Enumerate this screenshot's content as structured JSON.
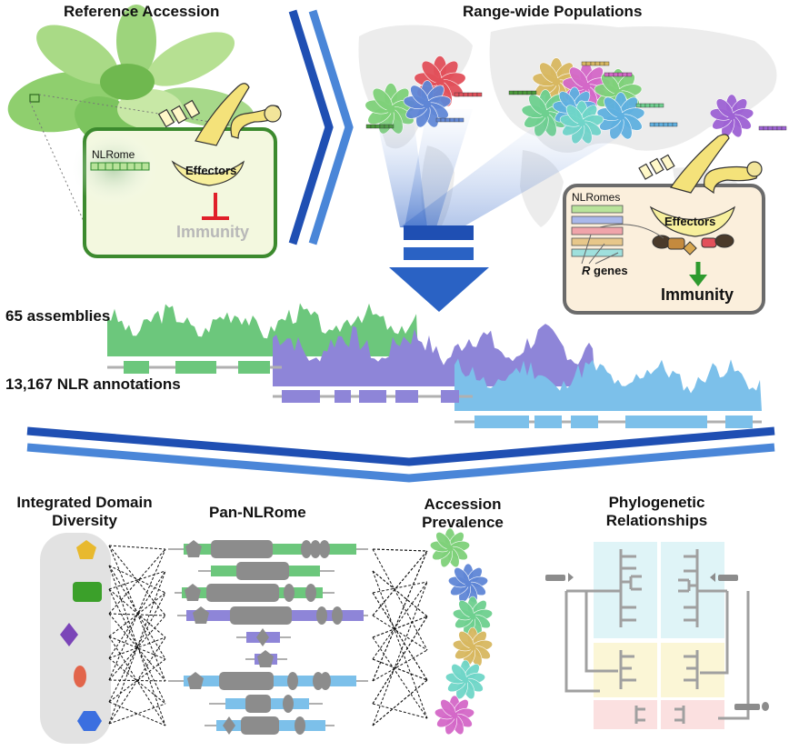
{
  "titles": {
    "reference_accession": "Reference Accession",
    "range_wide": "Range-wide Populations",
    "integrated_domain_line1": "Integrated Domain",
    "integrated_domain_line2": "Diversity",
    "pan_nlrome": "Pan-NLRome",
    "accession_line1": "Accession",
    "accession_line2": "Prevalence",
    "phylo_line1": "Phylogenetic",
    "phylo_line2": "Relationships"
  },
  "reference_cell": {
    "nlrome": "NLRome",
    "effectors": "Effectors",
    "immunity": "Immunity"
  },
  "population_cell": {
    "nlromes": "NLRomes",
    "effectors": "Effectors",
    "r_genes_italic": "R",
    "r_genes_rest": " genes",
    "immunity": "Immunity"
  },
  "stats": {
    "assemblies": "65 assemblies",
    "annotations": "13,167 NLR annotations"
  },
  "colors": {
    "green": "#6cc77c",
    "purple": "#8e85d8",
    "blue": "#7cc0ea",
    "arrow_dark": "#1f4fb3",
    "arrow_light": "#4a86d8",
    "inhibit_red": "#e0202a",
    "activate_green": "#2e9a2e",
    "cell_green_border": "#3c8a2e",
    "cell_gray_border": "#6b6b6b",
    "domain_gray": "#8c8c8c"
  },
  "domain_shapes": [
    {
      "shape": "pentagon",
      "color": "#e8b92e"
    },
    {
      "shape": "rounded-rect",
      "color": "#3ba02a"
    },
    {
      "shape": "diamond",
      "color": "#7b45b8"
    },
    {
      "shape": "ellipse",
      "color": "#e2654b"
    },
    {
      "shape": "hexagon",
      "color": "#3b6fe0"
    }
  ],
  "rosette_colors": [
    "#7fd17a",
    "#5f86d6",
    "#6ed08f",
    "#d8b860",
    "#6fd6c8",
    "#d468c8"
  ]
}
